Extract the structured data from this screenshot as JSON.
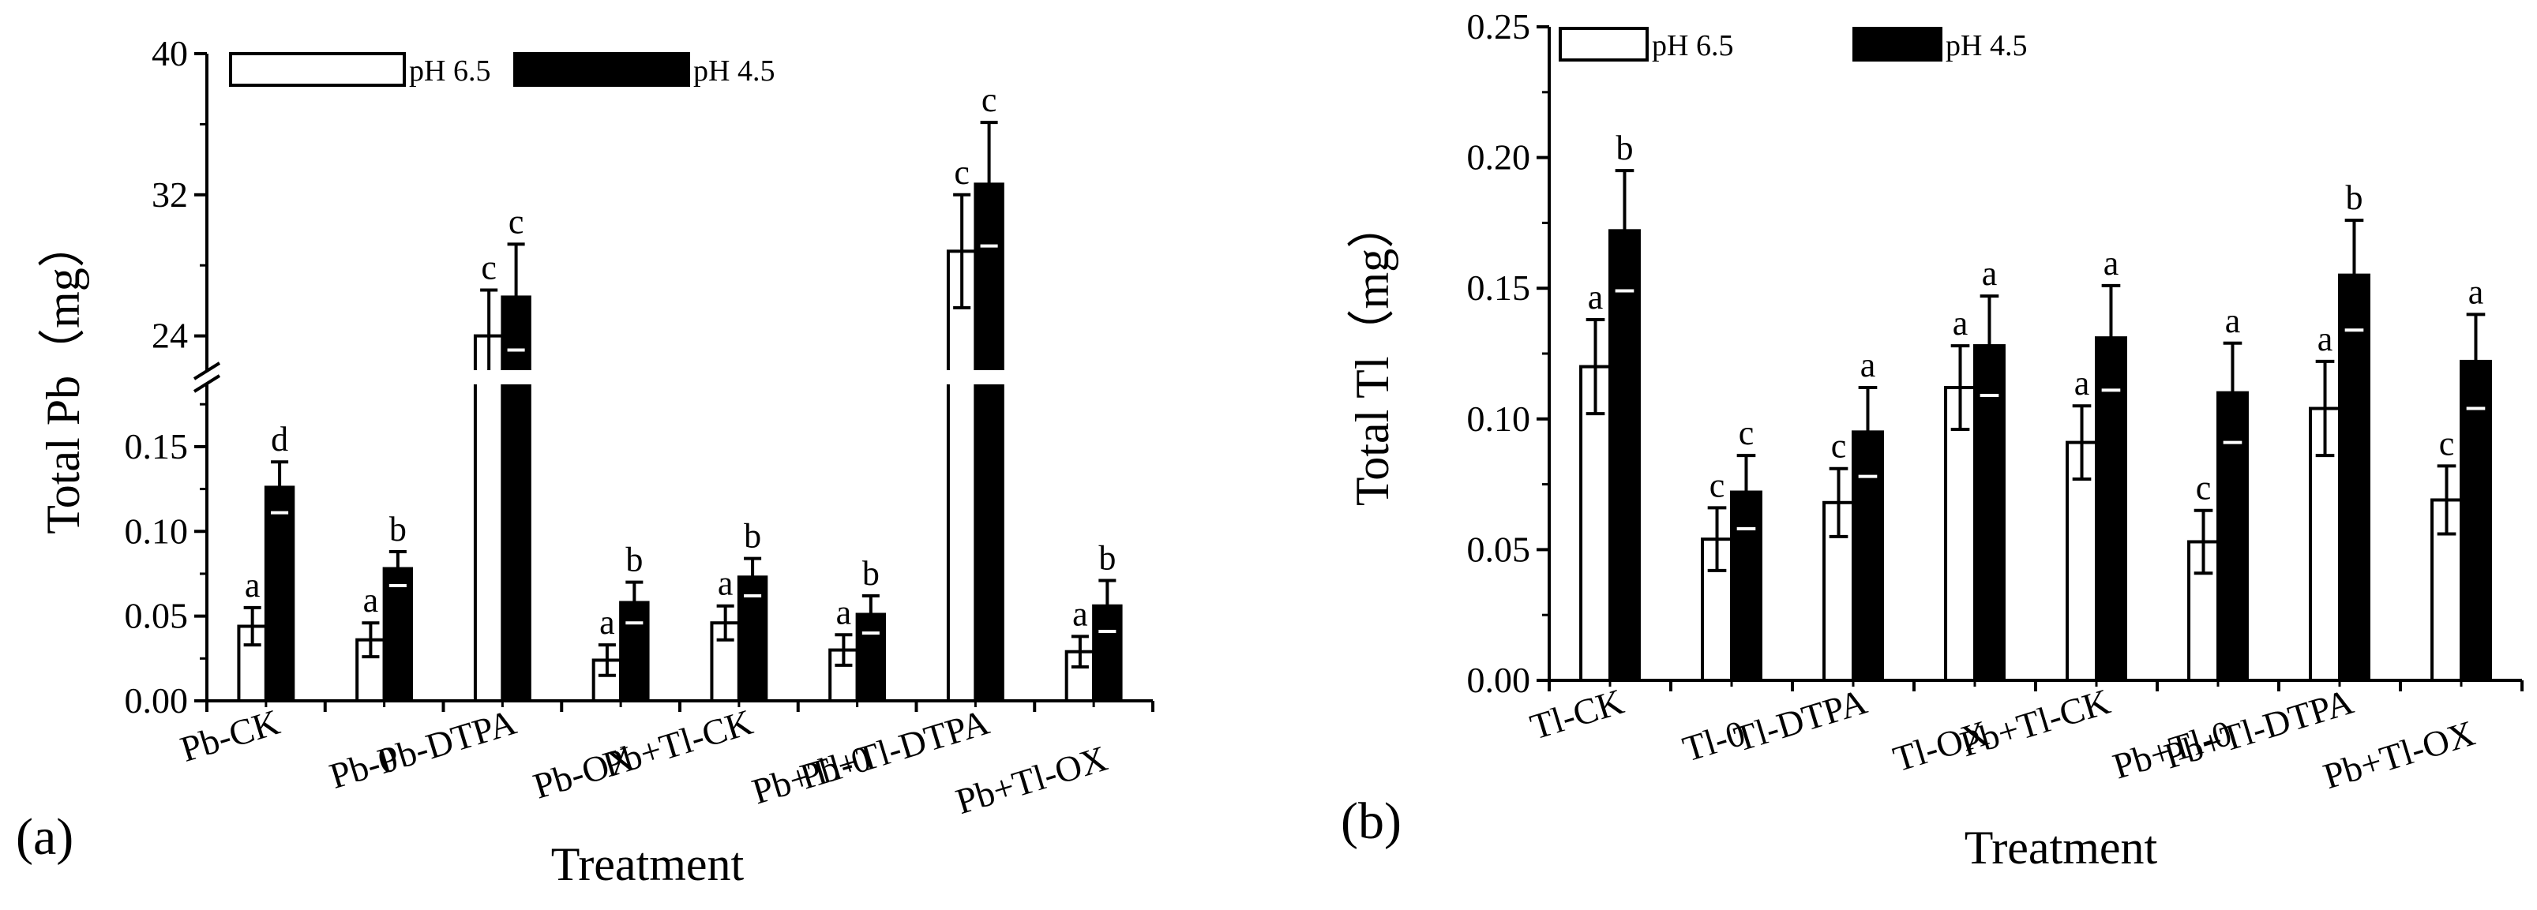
{
  "figure": {
    "legend": {
      "items": [
        {
          "label": "pH 6.5",
          "color": "#ffffff"
        },
        {
          "label": "pH 4.5",
          "color": "#000000"
        }
      ]
    },
    "xlabel": "Treatment"
  },
  "chart_data": [
    {
      "type": "bar",
      "panel": "(a)",
      "ylabel": "Total Pb（mg）",
      "xlabel": "Treatment",
      "categories": [
        "Pb-CK",
        "Pb-0",
        "Pb-DTPA",
        "Pb-OX",
        "Pb+Tl-CK",
        "Pb+Tl-0",
        "Pb+Tl-DTPA",
        "Pb+Tl-OX"
      ],
      "axis_break": {
        "lower_range": [
          0,
          0.19
        ],
        "upper_range": [
          20,
          40
        ]
      },
      "ylim": [
        0,
        40
      ],
      "lower_ticks": [
        "0.00",
        "0.05",
        "0.10",
        "0.15"
      ],
      "upper_ticks": [
        "24",
        "32",
        "40"
      ],
      "series": [
        {
          "name": "pH 6.5",
          "color": "#ffffff",
          "values": [
            0.044,
            0.036,
            24.0,
            0.024,
            0.046,
            0.03,
            28.8,
            0.029
          ],
          "errors": [
            0.011,
            0.01,
            2.6,
            0.009,
            0.01,
            0.009,
            3.2,
            0.009
          ],
          "sig": [
            "a",
            "a",
            "c",
            "a",
            "a",
            "a",
            "c",
            "a"
          ]
        },
        {
          "name": "pH 4.5",
          "color": "#000000",
          "values": [
            0.126,
            0.078,
            26.2,
            0.058,
            0.073,
            0.051,
            32.6,
            0.056
          ],
          "errors": [
            0.015,
            0.01,
            3.0,
            0.012,
            0.011,
            0.011,
            3.5,
            0.015
          ],
          "sig": [
            "d",
            "b",
            "c",
            "b",
            "b",
            "b",
            "c",
            "b"
          ]
        }
      ]
    },
    {
      "type": "bar",
      "panel": "(b)",
      "ylabel": "Total Tl（mg）",
      "xlabel": "Treatment",
      "categories": [
        "Tl-CK",
        "Tl-0",
        "Tl-DTPA",
        "Tl-OX",
        "Pb+Tl-CK",
        "Pb+Tl-0",
        "Pb+Tl-DTPA",
        "Pb+Tl-OX"
      ],
      "ylim": [
        0,
        0.25
      ],
      "ticks": [
        "0.00",
        "0.05",
        "0.10",
        "0.15",
        "0.20",
        "0.25"
      ],
      "series": [
        {
          "name": "pH 6.5",
          "color": "#ffffff",
          "values": [
            0.12,
            0.054,
            0.068,
            0.112,
            0.091,
            0.053,
            0.104,
            0.069
          ],
          "errors": [
            0.018,
            0.012,
            0.013,
            0.016,
            0.014,
            0.012,
            0.018,
            0.013
          ],
          "sig": [
            "a",
            "c",
            "c",
            "a",
            "a",
            "c",
            "a",
            "c"
          ]
        },
        {
          "name": "pH 4.5",
          "color": "#000000",
          "values": [
            0.172,
            0.072,
            0.095,
            0.128,
            0.131,
            0.11,
            0.155,
            0.122
          ],
          "errors": [
            0.023,
            0.014,
            0.017,
            0.019,
            0.02,
            0.019,
            0.021,
            0.018
          ],
          "sig": [
            "b",
            "c",
            "a",
            "a",
            "a",
            "a",
            "b",
            "a"
          ]
        }
      ]
    }
  ]
}
